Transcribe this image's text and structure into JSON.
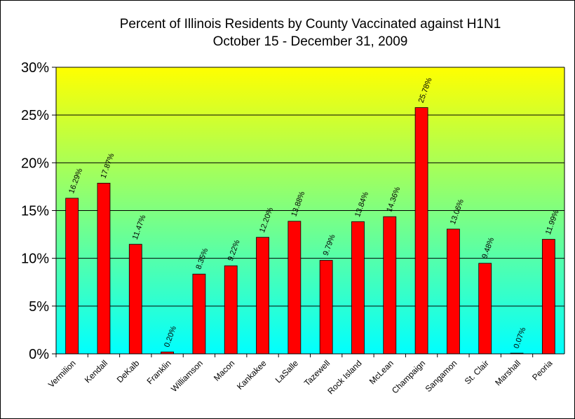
{
  "chart_data": {
    "type": "bar",
    "title": "Percent of Illinois Residents by County Vaccinated against H1N1",
    "subtitle": "October 15 - December 31, 2009",
    "categories": [
      "Vermilion",
      "Kendall",
      "DeKalb",
      "Franklin",
      "Williamson",
      "Macon",
      "Kankakee",
      "LaSalle",
      "Tazewell",
      "Rock Island",
      "McLean",
      "Champaign",
      "Sangamon",
      "St. Clair",
      "Marshall",
      "Peoria"
    ],
    "values": [
      16.29,
      17.87,
      11.47,
      0.2,
      8.35,
      9.22,
      12.2,
      13.88,
      9.79,
      13.84,
      14.36,
      25.78,
      13.06,
      9.48,
      0.07,
      11.99
    ],
    "data_labels": [
      "16.29%",
      "17.87%",
      "11.47%",
      "0.20%",
      "8.35%",
      "9.22%",
      "12.20%",
      "13.88%",
      "9.79%",
      "13.84%",
      "14.36%",
      "25.78%",
      "13.06%",
      "9.48%",
      "0.07%",
      "11.99%"
    ],
    "ylim": [
      0,
      30
    ],
    "yticks": [
      0,
      5,
      10,
      15,
      20,
      25,
      30
    ],
    "ytick_labels": [
      "0%",
      "5%",
      "10%",
      "15%",
      "20%",
      "25%",
      "30%"
    ],
    "xlabel": "",
    "ylabel": "",
    "grid": true,
    "legend": "none",
    "colors": {
      "bar": "#ff0000",
      "bar_edge": "#000000",
      "plot_bg_top": "#ffff00",
      "plot_bg_bottom": "#00ffff",
      "gridline": "#000000"
    }
  }
}
